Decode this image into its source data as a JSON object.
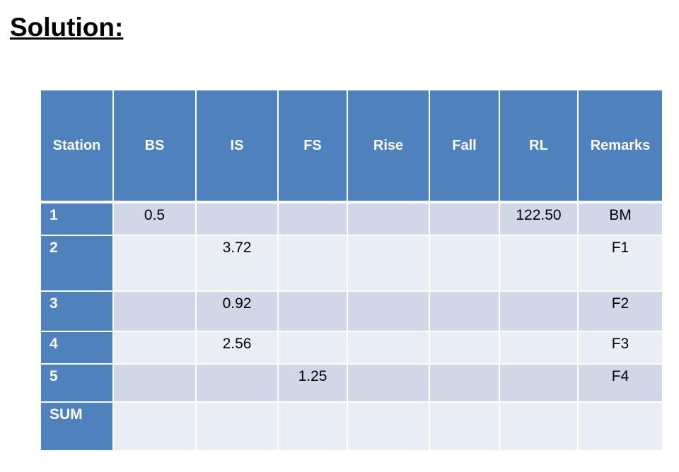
{
  "title": "Solution:",
  "table": {
    "header": [
      "Station",
      "BS",
      "IS",
      "FS",
      "Rise",
      "Fall",
      "RL",
      "Remarks"
    ],
    "rows": [
      [
        "1",
        "0.5",
        null,
        null,
        null,
        null,
        "122.50",
        "BM"
      ],
      [
        "2",
        null,
        "3.72",
        null,
        null,
        null,
        null,
        "F1"
      ],
      [
        "3",
        null,
        "0.92",
        null,
        null,
        null,
        null,
        "F2"
      ],
      [
        "4",
        null,
        "2.56",
        null,
        null,
        null,
        null,
        "F3"
      ],
      [
        "5",
        null,
        null,
        "1.25",
        null,
        null,
        null,
        "F4"
      ],
      [
        "SUM",
        null,
        null,
        null,
        null,
        null,
        null,
        null
      ]
    ]
  }
}
